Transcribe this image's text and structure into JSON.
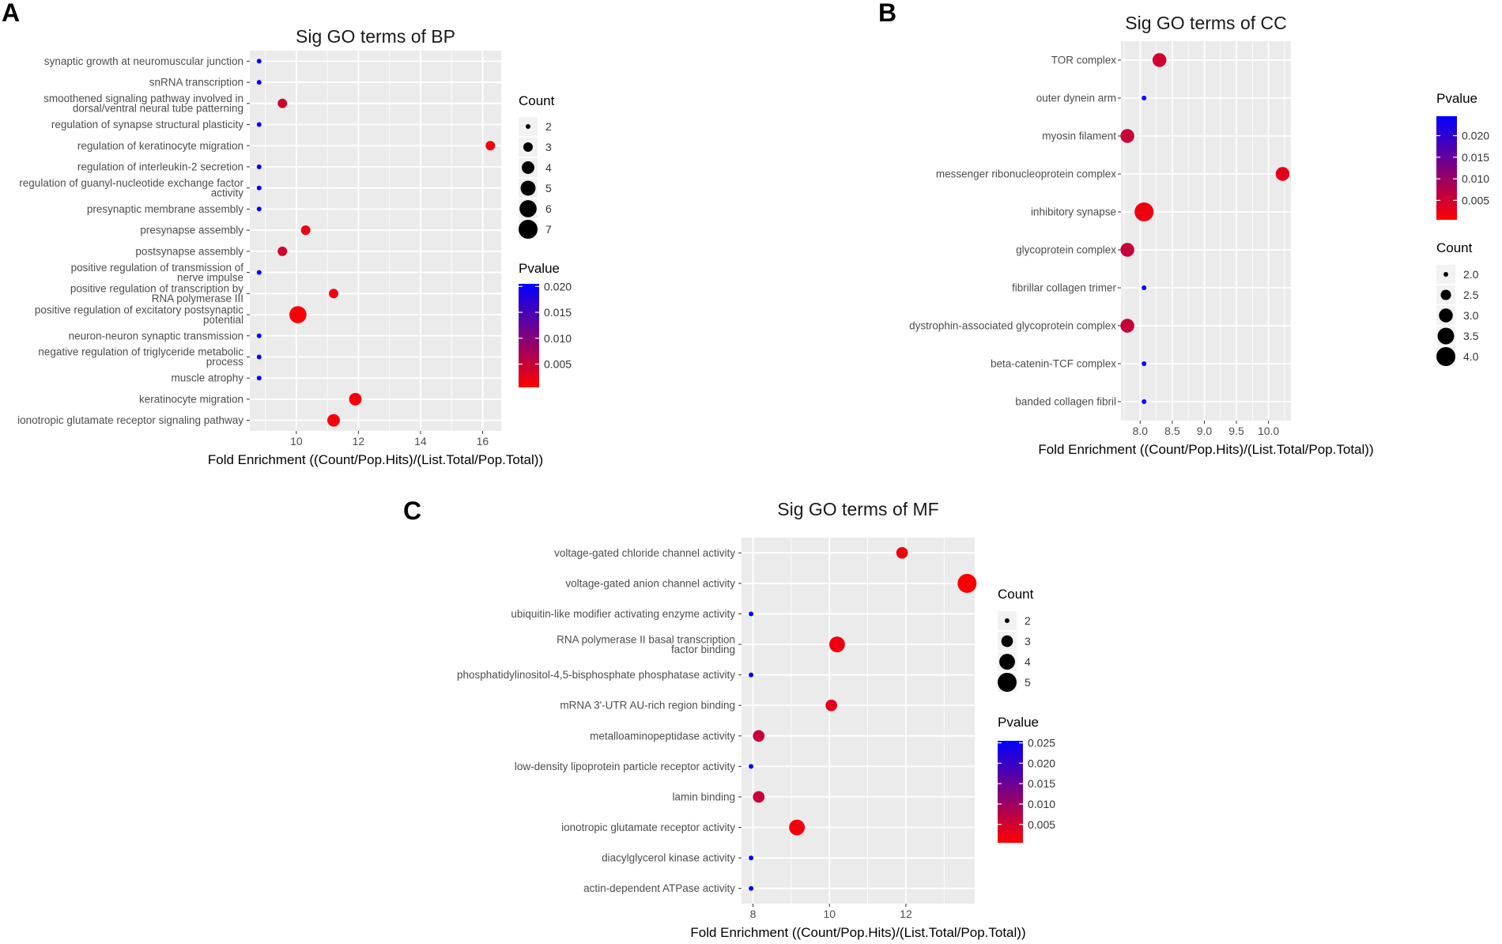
{
  "colors": {
    "low_p": "#ff0000",
    "high_p": "#0000ff",
    "panel_bg": "#ebebeb",
    "grid": "#ffffff"
  },
  "chart_data": [
    {
      "panel": "A",
      "type": "scatter",
      "title": "Sig GO terms of BP",
      "xlabel": "Fold Enrichment ((Count/Pop.Hits)/(List.Total/Pop.Total))",
      "xlim": [
        8.5,
        16.6
      ],
      "xticks": [
        10,
        12,
        14,
        16
      ],
      "xtick_labels": [
        "10",
        "12",
        "14",
        "16"
      ],
      "count_legend": {
        "title": "Count",
        "values": [
          2,
          3,
          4,
          5,
          6,
          7
        ],
        "labels": [
          "2",
          "3",
          "4",
          "5",
          "6",
          "7"
        ]
      },
      "pvalue_legend": {
        "title": "Pvalue",
        "min": 0.0005,
        "max": 0.0205,
        "ticks": [
          0.02,
          0.015,
          0.01,
          0.005
        ],
        "labels": [
          "0.020",
          "0.015",
          "0.010",
          "0.005"
        ]
      },
      "categories": [
        [
          "synaptic growth at neuromuscular junction"
        ],
        [
          "snRNA transcription"
        ],
        [
          "smoothened signaling pathway involved in",
          "dorsal/ventral neural tube patterning"
        ],
        [
          "regulation of synapse structural plasticity"
        ],
        [
          "regulation of keratinocyte migration"
        ],
        [
          "regulation of interleukin-2 secretion"
        ],
        [
          "regulation of guanyl-nucleotide exchange factor",
          "activity"
        ],
        [
          "presynaptic membrane assembly"
        ],
        [
          "presynapse assembly"
        ],
        [
          "postsynapse assembly"
        ],
        [
          "positive regulation of transmission of",
          "nerve impulse"
        ],
        [
          "positive regulation of transcription by",
          "RNA polymerase III"
        ],
        [
          "positive regulation of excitatory postsynaptic",
          "potential"
        ],
        [
          "neuron-neuron synaptic transmission"
        ],
        [
          "negative regulation of triglyceride metabolic",
          "process"
        ],
        [
          "muscle atrophy"
        ],
        [
          "keratinocyte migration"
        ],
        [
          "ionotropic glutamate receptor signaling pathway"
        ]
      ],
      "fold": [
        8.8,
        8.8,
        9.55,
        8.8,
        16.25,
        8.8,
        8.8,
        8.8,
        10.3,
        9.55,
        8.8,
        11.2,
        10.05,
        8.8,
        8.8,
        8.8,
        11.9,
        11.2
      ],
      "count": [
        2,
        2,
        3,
        2,
        3,
        2,
        2,
        2,
        3,
        3,
        2,
        3,
        6,
        2,
        2,
        2,
        4,
        4
      ],
      "pvalue": [
        0.02,
        0.02,
        0.004,
        0.02,
        0.0012,
        0.02,
        0.02,
        0.02,
        0.002,
        0.004,
        0.02,
        0.002,
        0.001,
        0.02,
        0.02,
        0.02,
        0.0012,
        0.0012
      ]
    },
    {
      "panel": "B",
      "type": "scatter",
      "title": "Sig GO terms of CC",
      "xlabel": "Fold Enrichment ((Count/Pop.Hits)/(List.Total/Pop.Total))",
      "xlim": [
        7.7,
        10.35
      ],
      "xticks": [
        8.0,
        8.5,
        9.0,
        9.5,
        10.0
      ],
      "xtick_labels": [
        "8.0",
        "8.5",
        "9.0",
        "9.5",
        "10.0"
      ],
      "pvalue_legend": {
        "title": "Pvalue",
        "min": 0.0005,
        "max": 0.0245,
        "ticks": [
          0.02,
          0.015,
          0.01,
          0.005
        ],
        "labels": [
          "0.020",
          "0.015",
          "0.010",
          "0.005"
        ]
      },
      "count_legend": {
        "title": "Count",
        "values": [
          2.0,
          2.5,
          3.0,
          3.5,
          4.0
        ],
        "labels": [
          "2.0",
          "2.5",
          "3.0",
          "3.5",
          "4.0"
        ]
      },
      "categories": [
        [
          "TOR complex"
        ],
        [
          "outer dynein arm"
        ],
        [
          "myosin filament"
        ],
        [
          "messenger ribonucleoprotein complex"
        ],
        [
          "inhibitory synapse"
        ],
        [
          "glycoprotein complex"
        ],
        [
          "fibrillar collagen trimer"
        ],
        [
          "dystrophin-associated glycoprotein complex"
        ],
        [
          "beta-catenin-TCF complex"
        ],
        [
          "banded collagen fibril"
        ]
      ],
      "fold": [
        8.3,
        8.06,
        7.8,
        10.22,
        8.06,
        7.8,
        8.06,
        7.8,
        8.06,
        8.06
      ],
      "count": [
        3,
        2,
        3,
        3,
        4,
        3,
        2,
        3,
        2,
        2
      ],
      "pvalue": [
        0.005,
        0.0245,
        0.006,
        0.003,
        0.002,
        0.006,
        0.0245,
        0.006,
        0.0245,
        0.0245
      ]
    },
    {
      "panel": "C",
      "type": "scatter",
      "title": "Sig GO terms of MF",
      "xlabel": "Fold Enrichment ((Count/Pop.Hits)/(List.Total/Pop.Total))",
      "xlim": [
        7.7,
        13.8
      ],
      "xticks": [
        8,
        10,
        12
      ],
      "xtick_labels": [
        "8",
        "10",
        "12"
      ],
      "count_legend": {
        "title": "Count",
        "values": [
          2,
          3,
          4,
          5
        ],
        "labels": [
          "2",
          "3",
          "4",
          "5"
        ]
      },
      "pvalue_legend": {
        "title": "Pvalue",
        "min": 0.0005,
        "max": 0.0255,
        "ticks": [
          0.025,
          0.02,
          0.015,
          0.01,
          0.005
        ],
        "labels": [
          "0.025",
          "0.020",
          "0.015",
          "0.010",
          "0.005"
        ]
      },
      "categories": [
        [
          "voltage-gated chloride channel activity"
        ],
        [
          "voltage-gated anion channel activity"
        ],
        [
          "ubiquitin-like modifier activating enzyme activity"
        ],
        [
          "RNA polymerase II basal transcription",
          "factor binding"
        ],
        [
          "phosphatidylinositol-4,5-bisphosphate phosphatase activity"
        ],
        [
          "mRNA 3'-UTR AU-rich region binding"
        ],
        [
          "metalloaminopeptidase activity"
        ],
        [
          "low-density lipoprotein particle receptor activity"
        ],
        [
          "lamin binding"
        ],
        [
          "ionotropic glutamate receptor activity"
        ],
        [
          "diacylglycerol kinase activity"
        ],
        [
          "actin-dependent ATPase activity"
        ]
      ],
      "fold": [
        11.9,
        13.6,
        7.95,
        10.2,
        7.95,
        10.05,
        8.15,
        7.95,
        8.15,
        9.15,
        7.95,
        7.95
      ],
      "count": [
        3,
        5,
        2,
        4,
        2,
        3,
        3,
        2,
        3,
        4,
        2,
        2
      ],
      "pvalue": [
        0.002,
        0.001,
        0.025,
        0.002,
        0.025,
        0.003,
        0.006,
        0.025,
        0.006,
        0.0015,
        0.025,
        0.025
      ]
    }
  ]
}
